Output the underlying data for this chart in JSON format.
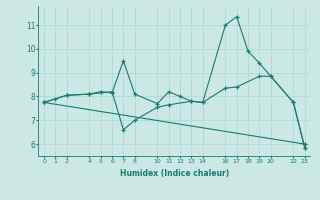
{
  "xlabel": "Humidex (Indice chaleur)",
  "ylabel": "",
  "background_color": "#cce8e5",
  "line_color": "#1a7a6e",
  "xlim": [
    -0.5,
    23.5
  ],
  "ylim": [
    5.5,
    11.8
  ],
  "xticks": [
    0,
    1,
    2,
    4,
    5,
    6,
    7,
    8,
    10,
    11,
    12,
    13,
    14,
    16,
    17,
    18,
    19,
    20,
    22,
    23
  ],
  "yticks": [
    6,
    7,
    8,
    9,
    10,
    11
  ],
  "lines": [
    {
      "x": [
        0,
        1,
        2,
        4,
        5,
        6,
        7,
        8,
        10,
        11,
        12,
        13,
        14,
        16,
        17,
        18,
        19,
        20,
        22,
        23
      ],
      "y": [
        7.75,
        7.9,
        8.05,
        8.1,
        8.2,
        8.15,
        9.5,
        8.1,
        7.7,
        8.2,
        8.0,
        7.8,
        7.75,
        11.0,
        11.35,
        9.9,
        9.4,
        8.85,
        7.75,
        5.85
      ]
    },
    {
      "x": [
        0,
        2,
        4,
        6,
        7,
        8,
        10,
        11,
        13,
        14,
        16,
        17,
        19,
        20,
        22,
        23
      ],
      "y": [
        7.75,
        8.05,
        8.1,
        8.2,
        6.6,
        7.0,
        7.55,
        7.65,
        7.8,
        7.75,
        8.35,
        8.4,
        8.85,
        8.85,
        7.75,
        5.85
      ]
    },
    {
      "x": [
        0,
        23
      ],
      "y": [
        7.75,
        6.0
      ]
    }
  ],
  "grid_color": "#a8d8d4",
  "tick_color": "#1a7a6e"
}
